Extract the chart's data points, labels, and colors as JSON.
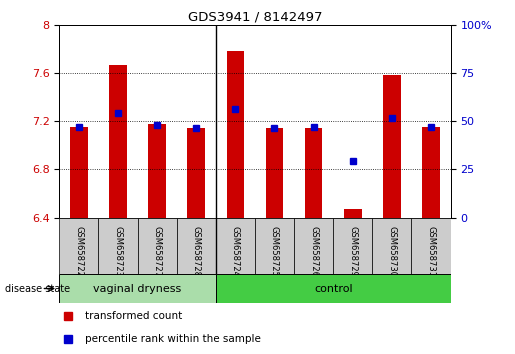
{
  "title": "GDS3941 / 8142497",
  "samples": [
    "GSM658722",
    "GSM658723",
    "GSM658727",
    "GSM658728",
    "GSM658724",
    "GSM658725",
    "GSM658726",
    "GSM658729",
    "GSM658730",
    "GSM658731"
  ],
  "red_values": [
    7.15,
    7.67,
    7.18,
    7.14,
    7.78,
    7.14,
    7.14,
    6.47,
    7.58,
    7.15
  ],
  "blue_values": [
    7.15,
    7.27,
    7.17,
    7.14,
    7.3,
    7.14,
    7.15,
    6.87,
    7.23,
    7.15
  ],
  "ymin": 6.4,
  "ymax": 8.0,
  "yticks": [
    6.4,
    6.8,
    7.2,
    7.6,
    8.0
  ],
  "ytick_labels": [
    "6.4",
    "6.8",
    "7.2",
    "7.6",
    "8"
  ],
  "right_ytick_vals": [
    0,
    25,
    50,
    75,
    100
  ],
  "right_ytick_labels": [
    "0",
    "25",
    "50",
    "75",
    "100%"
  ],
  "group1_label": "vaginal dryness",
  "group2_label": "control",
  "group1_count": 4,
  "group2_count": 6,
  "disease_state_label": "disease state",
  "legend_red": "transformed count",
  "legend_blue": "percentile rank within the sample",
  "bar_color": "#cc0000",
  "blue_color": "#0000cc",
  "bar_bottom": 6.4,
  "group1_bg": "#aaddaa",
  "group2_bg": "#44cc44",
  "tick_color_left": "#cc0000",
  "tick_color_right": "#0000cc"
}
